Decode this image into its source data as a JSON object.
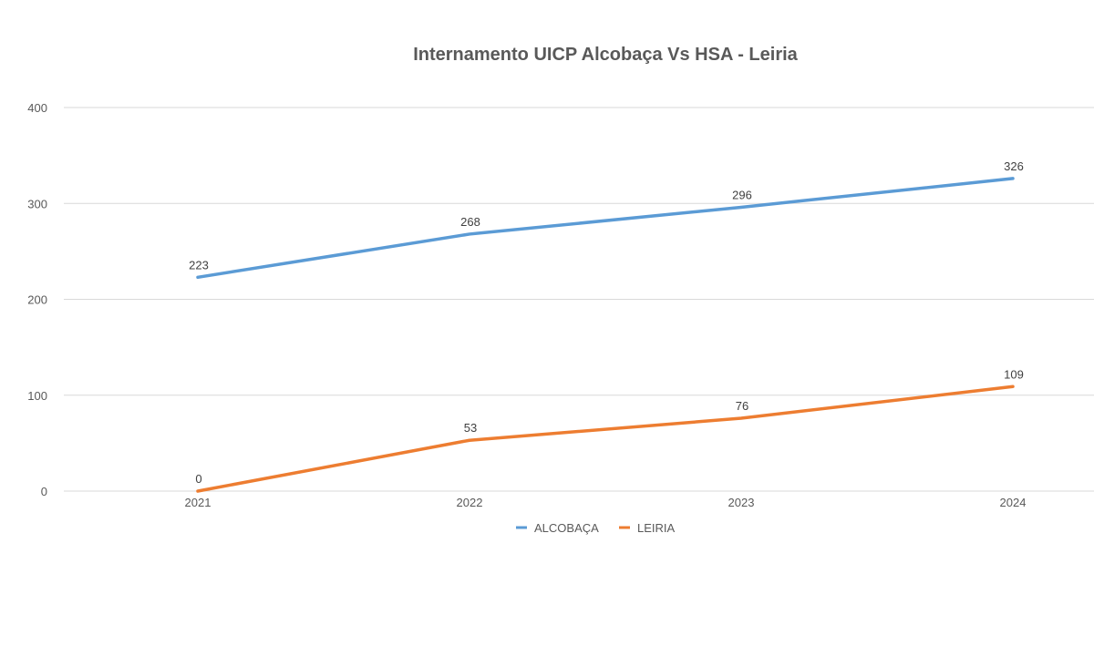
{
  "chart_data": {
    "type": "line",
    "title": "Internamento UICP Alcobaça Vs HSA - Leiria",
    "categories": [
      "2021",
      "2022",
      "2023",
      "2024"
    ],
    "ylim": [
      0,
      400
    ],
    "y_ticks": [
      "0",
      "100",
      "200",
      "300",
      "400"
    ],
    "grid": true,
    "legend_position": "bottom",
    "series": [
      {
        "name": "ALCOBAÇA",
        "values": [
          223,
          268,
          296,
          326
        ],
        "color": "#5b9bd5"
      },
      {
        "name": "LEIRIA",
        "values": [
          0,
          53,
          76,
          109
        ],
        "color": "#ed7d31"
      }
    ]
  },
  "colors": {
    "grid": "#d9d9d9",
    "text": "#595959"
  }
}
